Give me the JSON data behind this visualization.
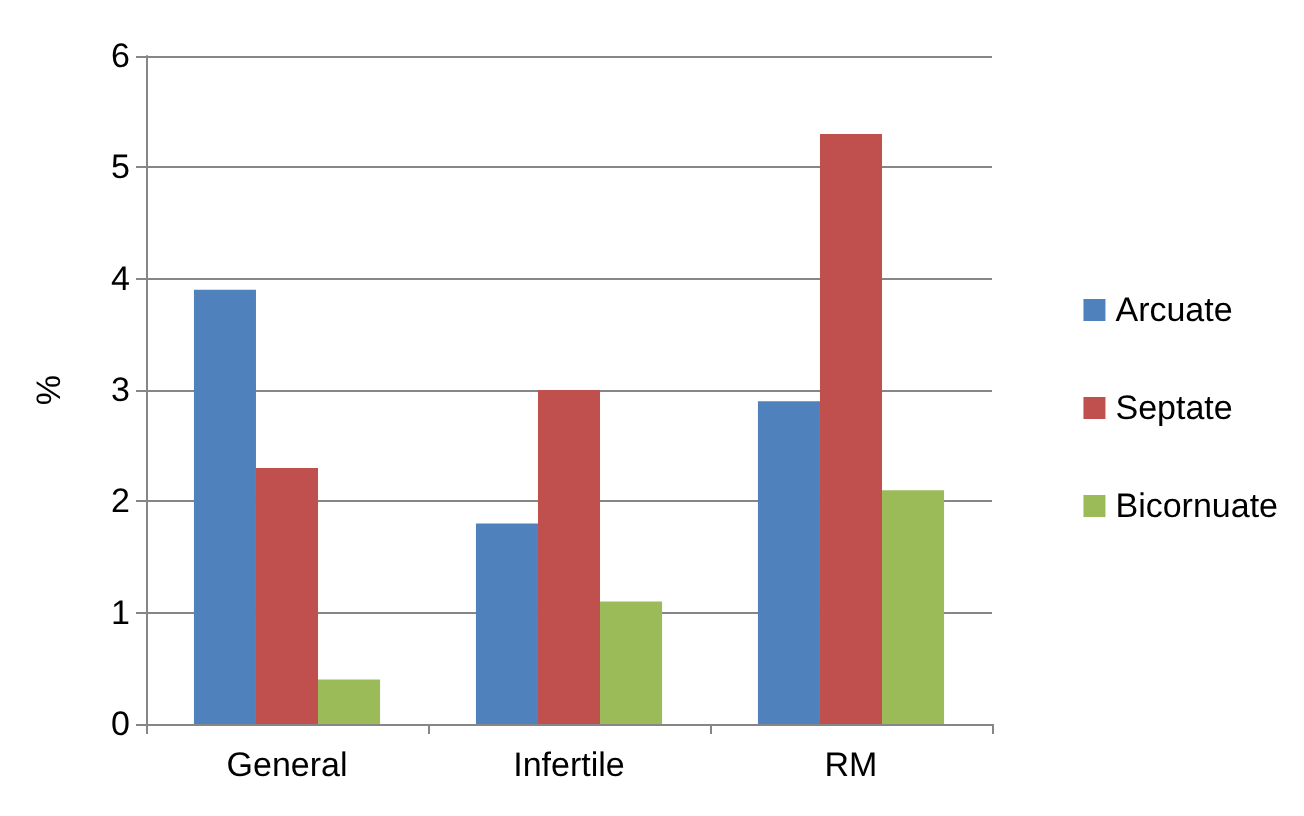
{
  "chart_data": {
    "type": "bar",
    "ylabel": "%",
    "categories": [
      "General",
      "Infertile",
      "RM"
    ],
    "series": [
      {
        "name": "Arcuate",
        "color": "#4f81bd",
        "values": [
          3.9,
          1.8,
          2.9
        ]
      },
      {
        "name": "Septate",
        "color": "#c0504d",
        "values": [
          2.3,
          3.0,
          5.3
        ]
      },
      {
        "name": "Bicornuate",
        "color": "#9bbb59",
        "values": [
          0.4,
          1.1,
          2.1
        ]
      }
    ],
    "ylim": [
      0,
      6
    ],
    "yticks": [
      0,
      1,
      2,
      3,
      4,
      5,
      6
    ],
    "grid": "y",
    "legend": "right"
  }
}
